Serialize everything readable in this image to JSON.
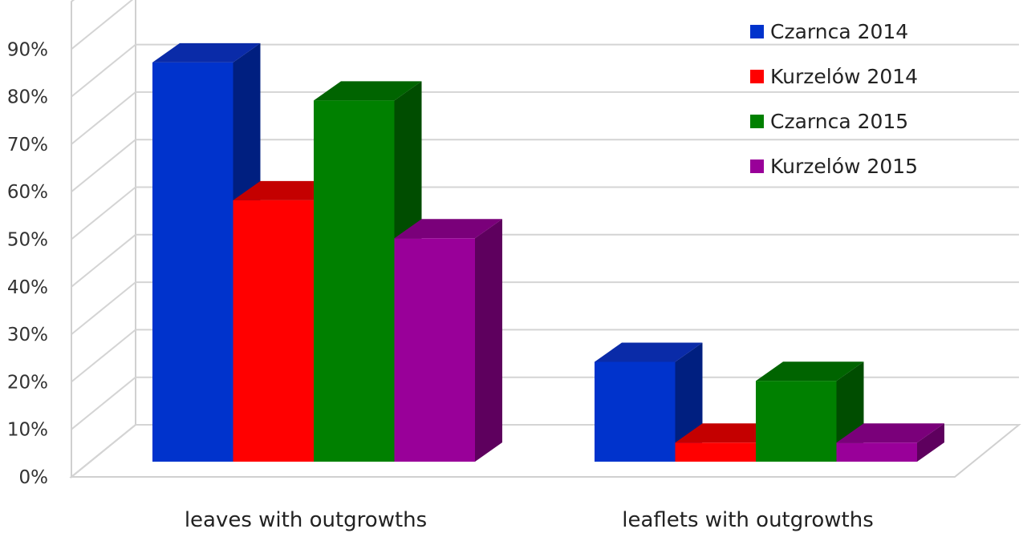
{
  "chart_data": {
    "type": "bar",
    "categories": [
      "leaves with outgrowths",
      "leaflets with outgrowths"
    ],
    "series": [
      {
        "name": "Czarnca 2014",
        "values": [
          84,
          21
        ],
        "color": "#0033cc",
        "side": "#001f80",
        "top": "#0a2ba8"
      },
      {
        "name": "Kurzelów 2014",
        "values": [
          55,
          4
        ],
        "color": "#ff0000",
        "side": "#b00000",
        "top": "#c40000"
      },
      {
        "name": "Czarnca 2015",
        "values": [
          76,
          17
        ],
        "color": "#008000",
        "side": "#004d00",
        "top": "#006400"
      },
      {
        "name": "Kurzelów 2015",
        "values": [
          47,
          4
        ],
        "color": "#990099",
        "side": "#5e005e",
        "top": "#7a007a"
      }
    ],
    "yticks": [
      "0%",
      "10%",
      "20%",
      "30%",
      "40%",
      "50%",
      "60%",
      "70%",
      "80%",
      "90%"
    ],
    "ylim": [
      0,
      100
    ],
    "grid": true,
    "legend": "top-right",
    "title": "",
    "xlabel": "",
    "ylabel": ""
  }
}
